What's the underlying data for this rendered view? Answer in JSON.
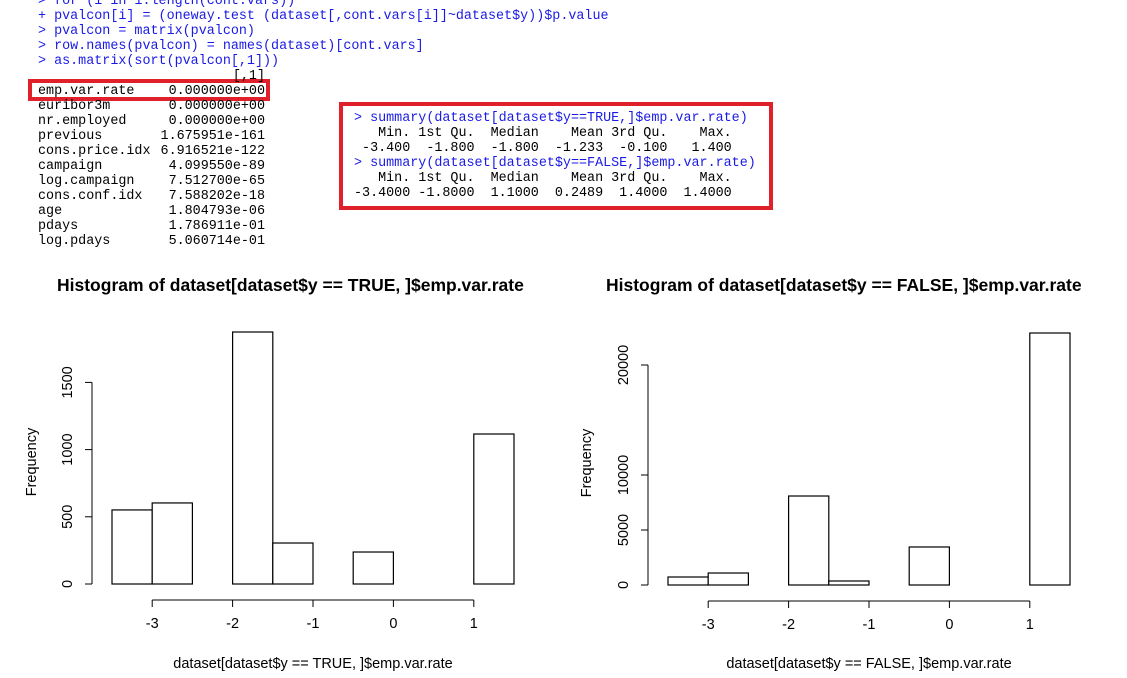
{
  "console": {
    "commands": [
      "> for (i in 1:length(cont.vars))",
      "+ pvalcon[i] = (oneway.test (dataset[,cont.vars[i]]~dataset$y))$p.value",
      "> pvalcon = matrix(pvalcon)",
      "> row.names(pvalcon) = names(dataset)[cont.vars]",
      "> as.matrix(sort(pvalcon[,1]))"
    ],
    "column_header": "[,1]",
    "rows": [
      [
        "emp.var.rate",
        "0.000000e+00"
      ],
      [
        "euribor3m",
        "0.000000e+00"
      ],
      [
        "nr.employed",
        "0.000000e+00"
      ],
      [
        "previous",
        "1.675951e-161"
      ],
      [
        "cons.price.idx",
        "6.916521e-122"
      ],
      [
        "campaign",
        "4.099550e-89"
      ],
      [
        "log.campaign",
        "7.512700e-65"
      ],
      [
        "cons.conf.idx",
        "7.588202e-18"
      ],
      [
        "age",
        "1.804793e-06"
      ],
      [
        "pdays",
        "1.786911e-01"
      ],
      [
        "log.pdays",
        "5.060714e-01"
      ]
    ]
  },
  "summary": {
    "blocks": [
      {
        "command": "> summary(dataset[dataset$y==TRUE,]$emp.var.rate)",
        "header": "   Min. 1st Qu.  Median    Mean 3rd Qu.    Max. ",
        "values": " -3.400  -1.800  -1.800  -1.233  -0.100   1.400 "
      },
      {
        "command": "> summary(dataset[dataset$y==FALSE,]$emp.var.rate)",
        "header": "   Min. 1st Qu.  Median    Mean 3rd Qu.    Max. ",
        "values": "-3.4000 -1.8000  1.1000  0.2489  1.4000  1.4000 "
      }
    ]
  },
  "chart_data": [
    {
      "type": "histogram",
      "title": "Histogram of dataset[dataset$y == TRUE, ]$emp.var.rate",
      "xlabel": "dataset[dataset$y == TRUE, ]$emp.var.rate",
      "ylabel": "Frequency",
      "bins": [
        -3.5,
        -3,
        -2.5,
        -2,
        -1.5,
        -1,
        -0.5,
        0,
        0.5,
        1,
        1.5
      ],
      "values": [
        551,
        603,
        0,
        1875,
        305,
        0,
        238,
        0,
        0,
        1116
      ],
      "xlim": [
        -3.5,
        1.5
      ],
      "ylim": [
        0,
        1875
      ],
      "xticks": [
        -3,
        -2,
        -1,
        0,
        1
      ],
      "yticks": [
        0,
        500,
        1000,
        1500
      ],
      "color": "#ffffff"
    },
    {
      "type": "histogram",
      "title": "Histogram of dataset[dataset$y == FALSE, ]$emp.var.rate",
      "xlabel": "dataset[dataset$y == FALSE, ]$emp.var.rate",
      "ylabel": "Frequency",
      "bins": [
        -3.5,
        -3,
        -2.5,
        -2,
        -1.5,
        -1,
        -0.5,
        0,
        0.5,
        1,
        1.5
      ],
      "values": [
        727,
        1090,
        0,
        8090,
        364,
        0,
        3455,
        0,
        0,
        22909
      ],
      "xlim": [
        -3.5,
        1.5
      ],
      "ylim": [
        0,
        22909
      ],
      "xticks": [
        -3,
        -2,
        -1,
        0,
        1
      ],
      "yticks": [
        0,
        5000,
        10000,
        20000
      ],
      "color": "#ffffff"
    }
  ]
}
